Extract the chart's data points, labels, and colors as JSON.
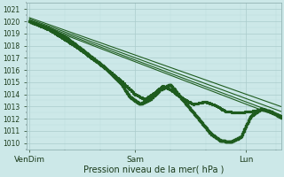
{
  "xlabel": "Pression niveau de la mer( hPa )",
  "ylim": [
    1009.5,
    1021.5
  ],
  "yticks": [
    1010,
    1011,
    1012,
    1013,
    1014,
    1015,
    1016,
    1017,
    1018,
    1019,
    1020,
    1021
  ],
  "xtick_labels": [
    "VenDim",
    "Sam",
    "Lun"
  ],
  "xtick_positions": [
    0.0,
    0.42,
    0.86
  ],
  "bg_color": "#cce8e8",
  "grid_major_color": "#aacccc",
  "grid_minor_color": "#bbdddd",
  "line_color": "#1e5c1e",
  "smooth_lines": [
    {
      "x": [
        0,
        1.0
      ],
      "y": [
        1020.0,
        1012.1
      ]
    },
    {
      "x": [
        0,
        1.0
      ],
      "y": [
        1020.1,
        1012.3
      ]
    },
    {
      "x": [
        0,
        1.0
      ],
      "y": [
        1020.2,
        1012.6
      ]
    },
    {
      "x": [
        0,
        1.0
      ],
      "y": [
        1020.3,
        1013.0
      ]
    }
  ],
  "wiggly_lines": [
    {
      "x": [
        0,
        0.08,
        0.18,
        0.28,
        0.36,
        0.42,
        0.46,
        0.5,
        0.53,
        0.56,
        0.6,
        0.65,
        0.7,
        0.74,
        0.78,
        0.83,
        0.88,
        0.93,
        1.0
      ],
      "y": [
        1020.0,
        1019.3,
        1018.0,
        1016.5,
        1015.2,
        1014.0,
        1013.6,
        1014.2,
        1014.7,
        1014.4,
        1013.8,
        1013.2,
        1013.4,
        1013.1,
        1012.6,
        1012.5,
        1012.6,
        1012.8,
        1012.2
      ]
    },
    {
      "x": [
        0,
        0.07,
        0.15,
        0.22,
        0.3,
        0.36,
        0.4,
        0.44,
        0.48,
        0.52,
        0.56,
        0.6,
        0.64,
        0.68,
        0.72,
        0.76,
        0.8,
        0.84,
        0.88,
        0.92,
        0.96,
        1.0
      ],
      "y": [
        1020.0,
        1019.5,
        1018.6,
        1017.5,
        1016.2,
        1015.0,
        1013.8,
        1013.2,
        1013.6,
        1014.4,
        1014.8,
        1013.8,
        1012.8,
        1011.8,
        1010.8,
        1010.2,
        1010.1,
        1010.5,
        1012.2,
        1012.8,
        1012.6,
        1012.1
      ]
    }
  ]
}
